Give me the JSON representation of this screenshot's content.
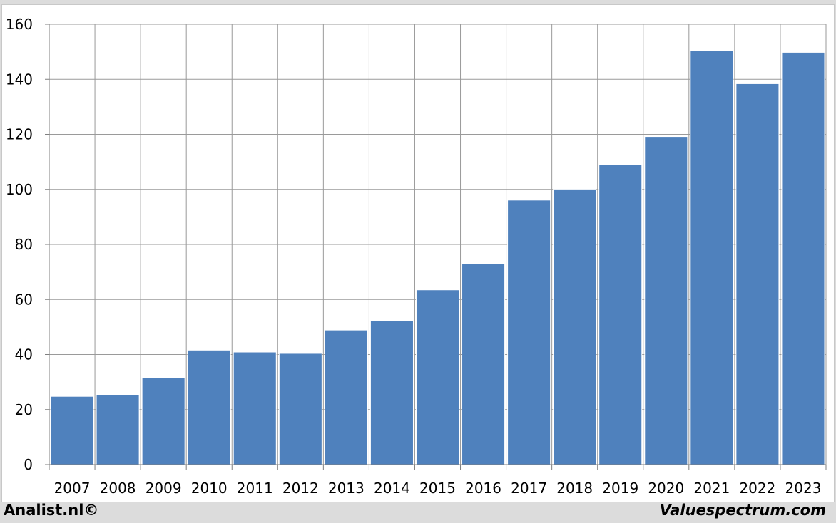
{
  "chart_data": {
    "type": "bar",
    "categories": [
      "2007",
      "2008",
      "2009",
      "2010",
      "2011",
      "2012",
      "2013",
      "2014",
      "2015",
      "2016",
      "2017",
      "2018",
      "2019",
      "2020",
      "2021",
      "2022",
      "2023"
    ],
    "values": [
      24.8,
      25.4,
      31.5,
      41.6,
      40.9,
      40.4,
      48.9,
      52.4,
      63.5,
      72.9,
      96.1,
      100.1,
      109.0,
      119.2,
      150.5,
      138.4,
      149.8
    ],
    "y_ticks": [
      "0",
      "20",
      "40",
      "60",
      "80",
      "100",
      "120",
      "140",
      "160"
    ],
    "ylim": [
      0,
      160
    ],
    "title": "",
    "xlabel": "",
    "ylabel": "",
    "grid": true,
    "bar_color": "#4f81bd"
  },
  "footer": {
    "left": "Analist.nl©",
    "right": "Valuespectrum.com"
  }
}
